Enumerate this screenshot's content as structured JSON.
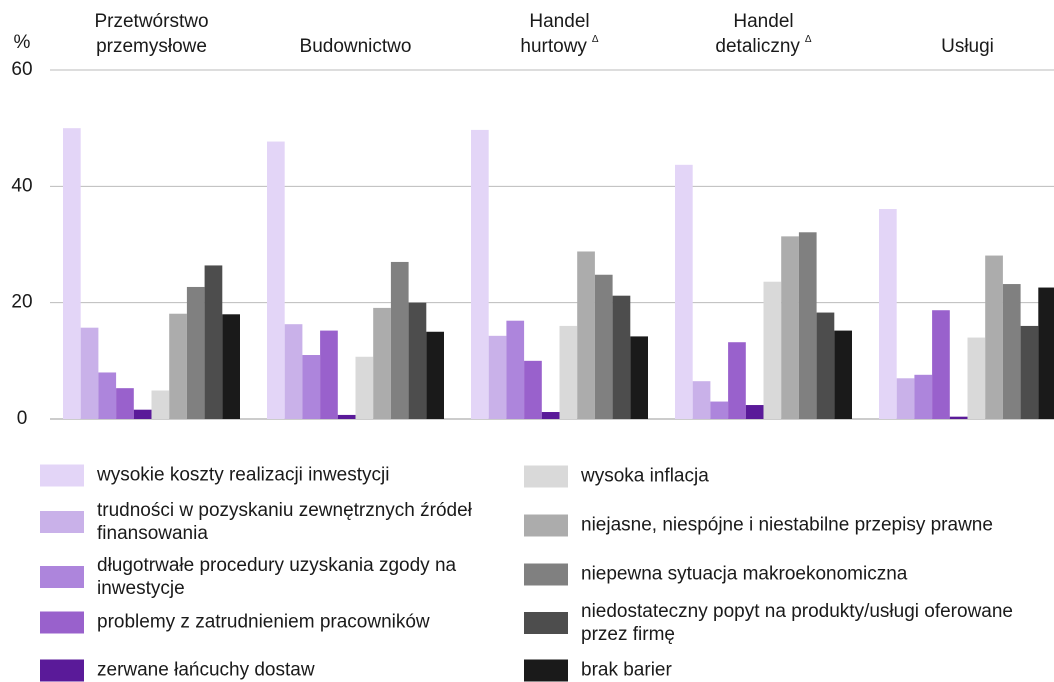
{
  "chart_data": {
    "type": "bar",
    "y_label": "%",
    "categories": [
      "Przetwórstwo przemysłowe",
      "Budownictwo",
      "Handel hurtowy",
      "Handel detaliczny",
      "Usługi"
    ],
    "category_marks": [
      null,
      null,
      "Δ",
      "Δ",
      null
    ],
    "ylim": [
      0,
      60
    ],
    "yticks": [
      0,
      20,
      40,
      60
    ],
    "grid": true,
    "series": [
      {
        "name": "wysokie koszty realizacji inwestycji",
        "color": "#e3d5f7",
        "values": [
          50.0,
          47.7,
          49.7,
          43.7,
          36.1
        ]
      },
      {
        "name": "trudności w pozyskaniu zewnętrznych źródeł finansowania",
        "color": "#c9b1e9",
        "values": [
          15.7,
          16.3,
          14.3,
          6.5,
          7.0
        ]
      },
      {
        "name": "długotrwałe procedury uzyskania zgody na inwestycje",
        "color": "#ad85dc",
        "values": [
          8.0,
          11.0,
          16.9,
          3.0,
          7.6
        ]
      },
      {
        "name": "problemy z zatrudnieniem pracowników",
        "color": "#9961cc",
        "values": [
          5.3,
          15.2,
          10.0,
          13.2,
          18.7
        ]
      },
      {
        "name": "zerwane łańcuchy dostaw",
        "color": "#5a1a99",
        "values": [
          1.6,
          0.7,
          1.2,
          2.4,
          0.4
        ]
      },
      {
        "name": "wysoka inflacja",
        "color": "#d9d9d9",
        "values": [
          4.9,
          10.7,
          16.0,
          23.6,
          14.0
        ]
      },
      {
        "name": "niejasne, niespójne i niestabilne przepisy prawne",
        "color": "#acacac",
        "values": [
          18.1,
          19.1,
          28.8,
          31.4,
          28.1
        ]
      },
      {
        "name": "niepewna sytuacja makroekonomiczna",
        "color": "#808080",
        "values": [
          22.7,
          27.0,
          24.8,
          32.1,
          23.2
        ]
      },
      {
        "name": "niedostateczny popyt na produkty/usługi oferowane przez firmę",
        "color": "#4d4d4d",
        "values": [
          26.4,
          20.0,
          21.2,
          18.3,
          16.0
        ]
      },
      {
        "name": "brak barier",
        "color": "#1a1a1a",
        "values": [
          18.0,
          15.0,
          14.2,
          15.2,
          22.6
        ]
      }
    ]
  }
}
